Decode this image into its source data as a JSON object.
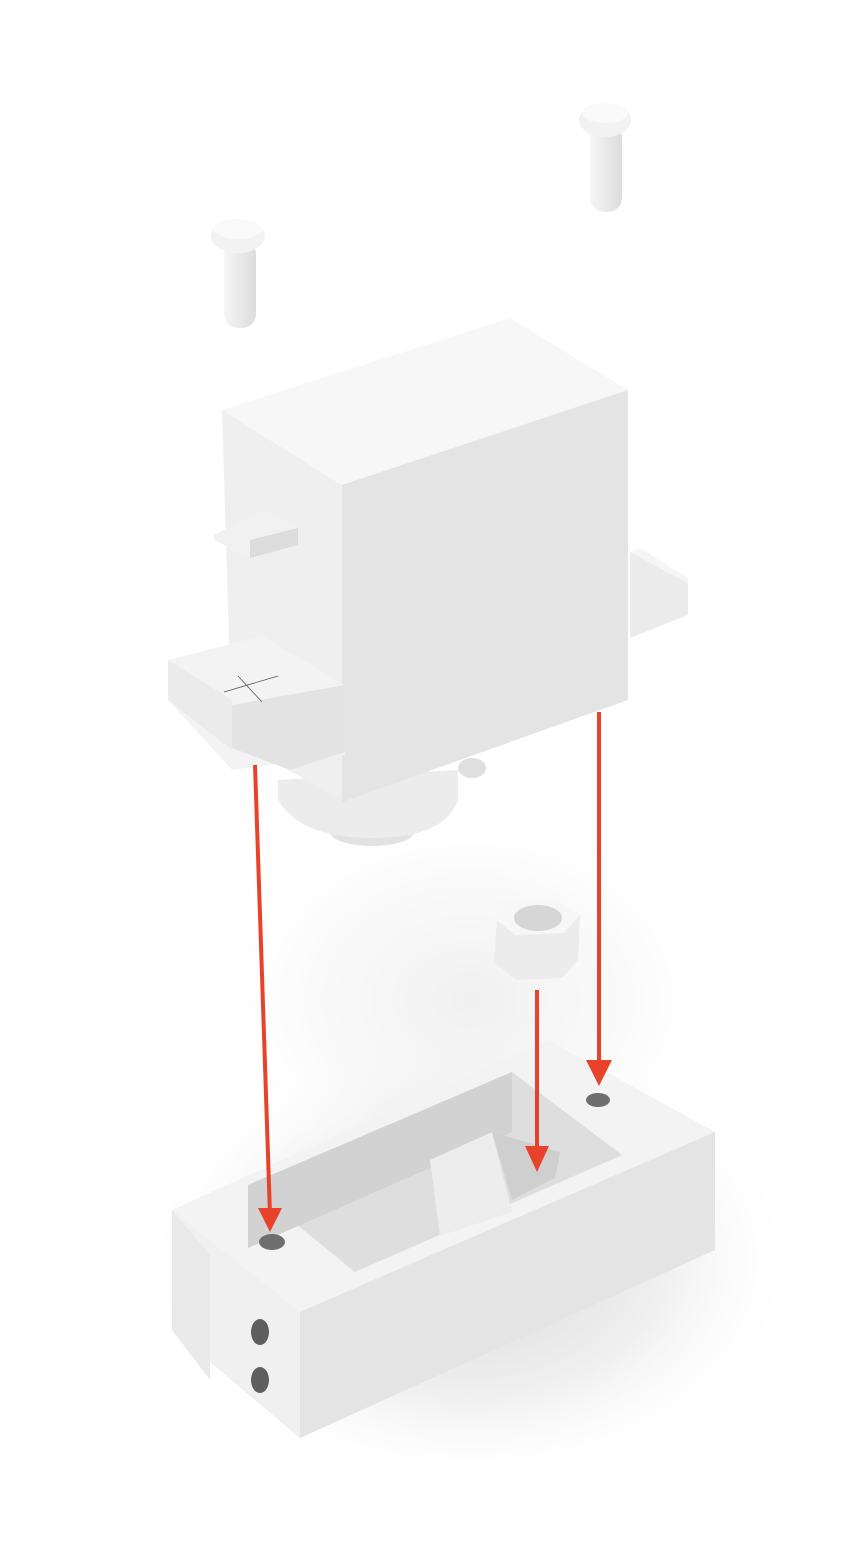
{
  "figure": {
    "type": "exploded-assembly-render",
    "parts": [
      {
        "name": "pin-left",
        "kind": "rivet"
      },
      {
        "name": "pin-right",
        "kind": "rivet"
      },
      {
        "name": "servo-motor",
        "kind": "servo"
      },
      {
        "name": "hex-nut",
        "kind": "nut"
      },
      {
        "name": "servo-mount-base",
        "kind": "bracket"
      }
    ],
    "arrows": [
      {
        "name": "arrow-left-mount-hole",
        "from": "servo-motor",
        "to": "servo-mount-base"
      },
      {
        "name": "arrow-nut-pocket",
        "from": "hex-nut",
        "to": "servo-mount-base"
      },
      {
        "name": "arrow-right-mount-hole",
        "from": "servo-motor",
        "to": "servo-mount-base"
      }
    ]
  },
  "colors": {
    "background": "#ffffff",
    "part_light": "#f4f4f4",
    "part_mid": "#e6e6e6",
    "part_dark": "#d4d4d4",
    "shadow": "#c9c9c9",
    "arrow": "#e8432a"
  }
}
